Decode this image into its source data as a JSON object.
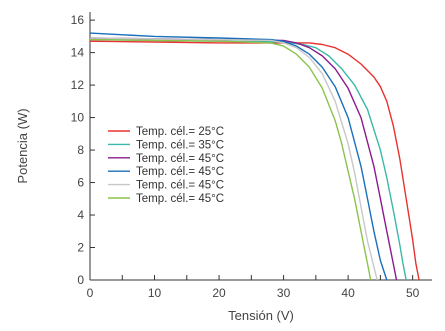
{
  "chart_data": {
    "type": "line",
    "title": "",
    "xlabel": "Tensión (V)",
    "ylabel": "Potencia (W)",
    "xlim": [
      0,
      53
    ],
    "ylim": [
      0,
      16.5
    ],
    "xticks": [
      0,
      10,
      20,
      30,
      40,
      50
    ],
    "yticks": [
      0,
      2,
      4,
      6,
      8,
      10,
      12,
      14,
      16
    ],
    "legend_position": "left-middle",
    "grid": false,
    "series": [
      {
        "name": "Temp. cél.= 25°C",
        "color": "#e8322f",
        "x": [
          0,
          10,
          20,
          30,
          34,
          36,
          38,
          40,
          42,
          44,
          45,
          46,
          47,
          48,
          49,
          50,
          50.5,
          51
        ],
        "y": [
          14.7,
          14.65,
          14.6,
          14.6,
          14.6,
          14.5,
          14.3,
          13.9,
          13.3,
          12.5,
          11.9,
          11.0,
          9.5,
          7.5,
          5.0,
          2.5,
          1.0,
          0
        ]
      },
      {
        "name": "Temp. cél.= 35°C",
        "color": "#3bb8a7",
        "x": [
          0,
          10,
          20,
          30,
          33,
          35,
          37,
          39,
          41,
          43,
          45,
          46,
          47,
          48,
          48.5,
          49
        ],
        "y": [
          14.8,
          14.75,
          14.7,
          14.65,
          14.5,
          14.3,
          13.8,
          13.0,
          12.0,
          10.5,
          8.0,
          6.3,
          4.3,
          2.2,
          1.0,
          0
        ]
      },
      {
        "name": "Temp. cél.= 45°C",
        "color": "#8b1a8e",
        "x": [
          0,
          10,
          20,
          30,
          32,
          34,
          36,
          38,
          40,
          42,
          44,
          45,
          46,
          47,
          47.5
        ],
        "y": [
          14.9,
          14.85,
          14.8,
          14.75,
          14.6,
          14.3,
          13.8,
          13.0,
          11.8,
          10.0,
          7.0,
          5.0,
          3.0,
          1.0,
          0
        ]
      },
      {
        "name": "Temp. cél.= 45°C",
        "color": "#1a6fba",
        "x": [
          0,
          10,
          20,
          28,
          30,
          32,
          34,
          36,
          38,
          40,
          42,
          43,
          44,
          45,
          46
        ],
        "y": [
          15.2,
          15.0,
          14.9,
          14.8,
          14.7,
          14.4,
          13.9,
          13.1,
          11.9,
          10.0,
          7.0,
          5.0,
          3.0,
          1.2,
          0
        ]
      },
      {
        "name": "Temp. cél.= 45°C",
        "color": "#c8c8c8",
        "x": [
          0,
          10,
          20,
          28,
          30,
          32,
          34,
          36,
          38,
          40,
          41,
          42,
          43,
          44,
          44.5
        ],
        "y": [
          14.9,
          14.85,
          14.8,
          14.75,
          14.6,
          14.3,
          13.7,
          12.7,
          11.0,
          8.4,
          6.6,
          4.5,
          2.4,
          0.8,
          0
        ]
      },
      {
        "name": "Temp. cél.= 45°C",
        "color": "#8bc34a",
        "x": [
          0,
          10,
          20,
          28,
          30,
          32,
          34,
          36,
          38,
          39,
          40,
          41,
          42,
          43,
          43.5
        ],
        "y": [
          14.8,
          14.75,
          14.7,
          14.6,
          14.4,
          13.9,
          13.1,
          11.8,
          9.8,
          8.4,
          6.7,
          5.0,
          3.0,
          1.0,
          0
        ]
      }
    ]
  }
}
